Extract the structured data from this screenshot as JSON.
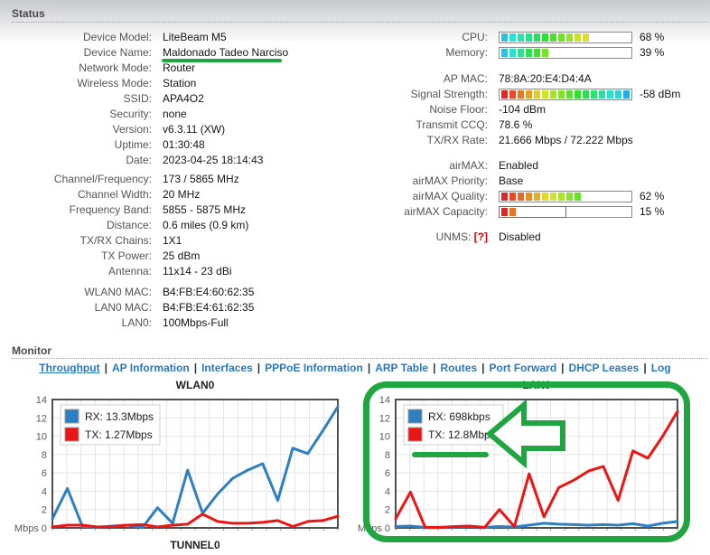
{
  "header": {
    "status_title": "Status",
    "monitor_title": "Monitor"
  },
  "status_left_groups": [
    [
      {
        "label": "Device Model:",
        "value": "LiteBeam M5"
      },
      {
        "label": "Device Name:",
        "value": "Maldonado Tadeo Narciso",
        "annotated": true
      },
      {
        "label": "Network Mode:",
        "value": "Router"
      },
      {
        "label": "Wireless Mode:",
        "value": "Station"
      },
      {
        "label": "SSID:",
        "value": "APA4O2"
      },
      {
        "label": "Security:",
        "value": "none"
      },
      {
        "label": "Version:",
        "value": "v6.3.11 (XW)"
      },
      {
        "label": "Uptime:",
        "value": "01:30:48"
      },
      {
        "label": "Date:",
        "value": "2023-04-25 18:14:43"
      }
    ],
    [
      {
        "label": "Channel/Frequency:",
        "value": "173 / 5865 MHz"
      },
      {
        "label": "Channel Width:",
        "value": "20 MHz"
      },
      {
        "label": "Frequency Band:",
        "value": "5855 - 5875 MHz"
      },
      {
        "label": "Distance:",
        "value": "0.6 miles (0.9 km)"
      },
      {
        "label": "TX/RX Chains:",
        "value": "1X1"
      },
      {
        "label": "TX Power:",
        "value": "25 dBm"
      },
      {
        "label": "Antenna:",
        "value": "11x14 - 23 dBi"
      }
    ],
    [
      {
        "label": "WLAN0 MAC:",
        "value": "B4:FB:E4:60:62:35"
      },
      {
        "label": "LAN0 MAC:",
        "value": "B4:FB:E4:61:62:35"
      },
      {
        "label": "LAN0:",
        "value": "100Mbps-Full"
      }
    ]
  ],
  "status_right_groups": [
    [
      {
        "label": "CPU:",
        "value": "68 %",
        "bar": {
          "percent": 68,
          "hue_from": 190,
          "hue_to": 57
        }
      },
      {
        "label": "Memory:",
        "value": "39 %",
        "bar": {
          "percent": 39,
          "hue_from": 190,
          "hue_to": 95
        }
      }
    ],
    [
      {
        "label": "AP MAC:",
        "value": "78:8A:20:E4:D4:4A"
      },
      {
        "label": "Signal Strength:",
        "value": "-58 dBm",
        "bar": {
          "percent": 100,
          "hue_from": 0,
          "hue_to": 197
        }
      },
      {
        "label": "Noise Floor:",
        "value": "-104 dBm"
      },
      {
        "label": "Transmit CCQ:",
        "value": "78.6 %"
      },
      {
        "label": "TX/RX Rate:",
        "value": "21.666 Mbps / 72.222 Mbps"
      }
    ],
    [
      {
        "label": "airMAX:",
        "value": "Enabled"
      },
      {
        "label": "airMAX Priority:",
        "value": "Base"
      },
      {
        "label": "airMAX Quality:",
        "value": "62 %",
        "bar": {
          "percent": 62,
          "hue_from": 0,
          "hue_to": 100
        }
      },
      {
        "label": "airMAX Capacity:",
        "value": "15 %",
        "bar": {
          "percent": 15,
          "hue_from": 0,
          "hue_to": 25,
          "inner_box": 50
        }
      }
    ],
    [
      {
        "label": "UNMS:",
        "help": "[?]",
        "value": "Disabled"
      }
    ]
  ],
  "monitor": {
    "links": [
      {
        "label": "Throughput",
        "active": true
      },
      {
        "label": "AP Information"
      },
      {
        "label": "Interfaces"
      },
      {
        "label": "PPPoE Information"
      },
      {
        "label": "ARP Table"
      },
      {
        "label": "Routes"
      },
      {
        "label": "Port Forward"
      },
      {
        "label": "DHCP Leases"
      },
      {
        "label": "Log"
      }
    ]
  },
  "chart_data": [
    {
      "type": "line",
      "title": "WLAN0",
      "ylabel": "Mbps",
      "ylim": [
        0,
        14
      ],
      "yticks": [
        0,
        2,
        4,
        6,
        8,
        10,
        12,
        14
      ],
      "grid": true,
      "legend_position": "top-left",
      "series": [
        {
          "name": "RX: 13.3Mbps",
          "color": "#2e7fc2",
          "values": [
            1.0,
            4.3,
            0.15,
            0.05,
            0.2,
            0.3,
            0.05,
            2.2,
            0.5,
            6.3,
            1.6,
            3.7,
            5.4,
            6.3,
            7.0,
            3.0,
            8.7,
            8.1,
            10.6,
            13.2
          ]
        },
        {
          "name": "TX: 1.27Mbps",
          "color": "#ed1414",
          "values": [
            0.1,
            0.3,
            0.3,
            0.1,
            0.15,
            0.3,
            0.35,
            0.1,
            0.3,
            0.4,
            1.5,
            0.7,
            0.5,
            0.5,
            0.6,
            0.8,
            0.15,
            0.7,
            0.8,
            1.27
          ]
        }
      ]
    },
    {
      "type": "line",
      "title": "LAN0",
      "ylabel": "Mbps",
      "ylim": [
        0,
        14
      ],
      "yticks": [
        0,
        2,
        4,
        6,
        8,
        10,
        12,
        14
      ],
      "grid": true,
      "legend_position": "top-left",
      "series": [
        {
          "name": "RX: 698kbps",
          "color": "#2e7fc2",
          "values": [
            0.15,
            0.2,
            0.05,
            0.05,
            0.1,
            0.15,
            0.05,
            0.15,
            0.1,
            0.3,
            0.5,
            0.4,
            0.35,
            0.3,
            0.35,
            0.3,
            0.45,
            0.2,
            0.5,
            0.7
          ]
        },
        {
          "name": "TX: 12.8Mbps",
          "color": "#ed1414",
          "values": [
            1.0,
            3.9,
            0.05,
            0.05,
            0.15,
            0.2,
            0.05,
            2.0,
            0.15,
            5.9,
            1.2,
            4.4,
            5.2,
            6.2,
            6.7,
            3.0,
            8.4,
            7.6,
            10.0,
            12.7
          ]
        }
      ]
    },
    {
      "type": "line",
      "title": "TUNNEL0",
      "note": "only title visible at bottom edge"
    }
  ],
  "annotations": {
    "color": "#1fa640",
    "device_name_underlined": true,
    "lan0_chart_boxed": true,
    "arrow_points_at": "TX: 12.8Mbps",
    "legend_underlined": true
  },
  "ui_colors": {
    "link_blue": "#2779bd",
    "series_rx_blue": "#2e7fc2",
    "series_tx_red": "#ed1414",
    "label_gray": "#545454",
    "help_red": "#e00000"
  }
}
